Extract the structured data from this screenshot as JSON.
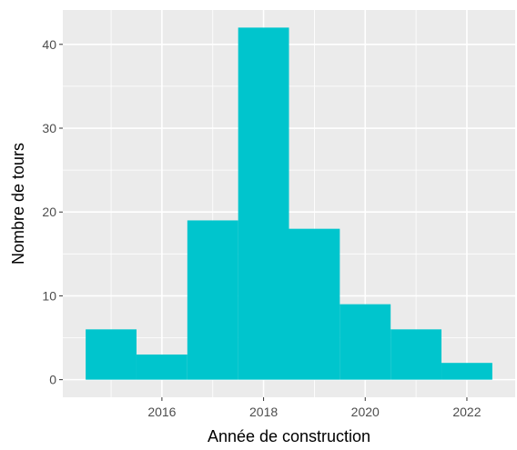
{
  "chart_data": {
    "type": "bar",
    "subtype": "histogram",
    "title": "",
    "xlabel": "Année de construction",
    "ylabel": "Nombre de tours",
    "bin_width": 1,
    "bins": [
      {
        "x": 2015,
        "value": 6
      },
      {
        "x": 2016,
        "value": 3
      },
      {
        "x": 2017,
        "value": 19
      },
      {
        "x": 2018,
        "value": 42
      },
      {
        "x": 2019,
        "value": 18
      },
      {
        "x": 2020,
        "value": 9
      },
      {
        "x": 2021,
        "value": 6
      },
      {
        "x": 2022,
        "value": 2
      }
    ],
    "xlim": [
      2014.05,
      2022.95
    ],
    "ylim": [
      -2.1,
      44.1
    ],
    "x_ticks": [
      2016,
      2018,
      2020,
      2022
    ],
    "x_tick_labels": [
      "2016",
      "2018",
      "2020",
      "2022"
    ],
    "y_ticks": [
      0,
      10,
      20,
      30,
      40
    ],
    "y_tick_labels": [
      "0",
      "10",
      "20",
      "30",
      "40"
    ],
    "bar_color": "#00C5CD",
    "panel_background": "#EBEBEB",
    "grid": true,
    "grid_color": "#FFFFFF",
    "legend": "none"
  }
}
